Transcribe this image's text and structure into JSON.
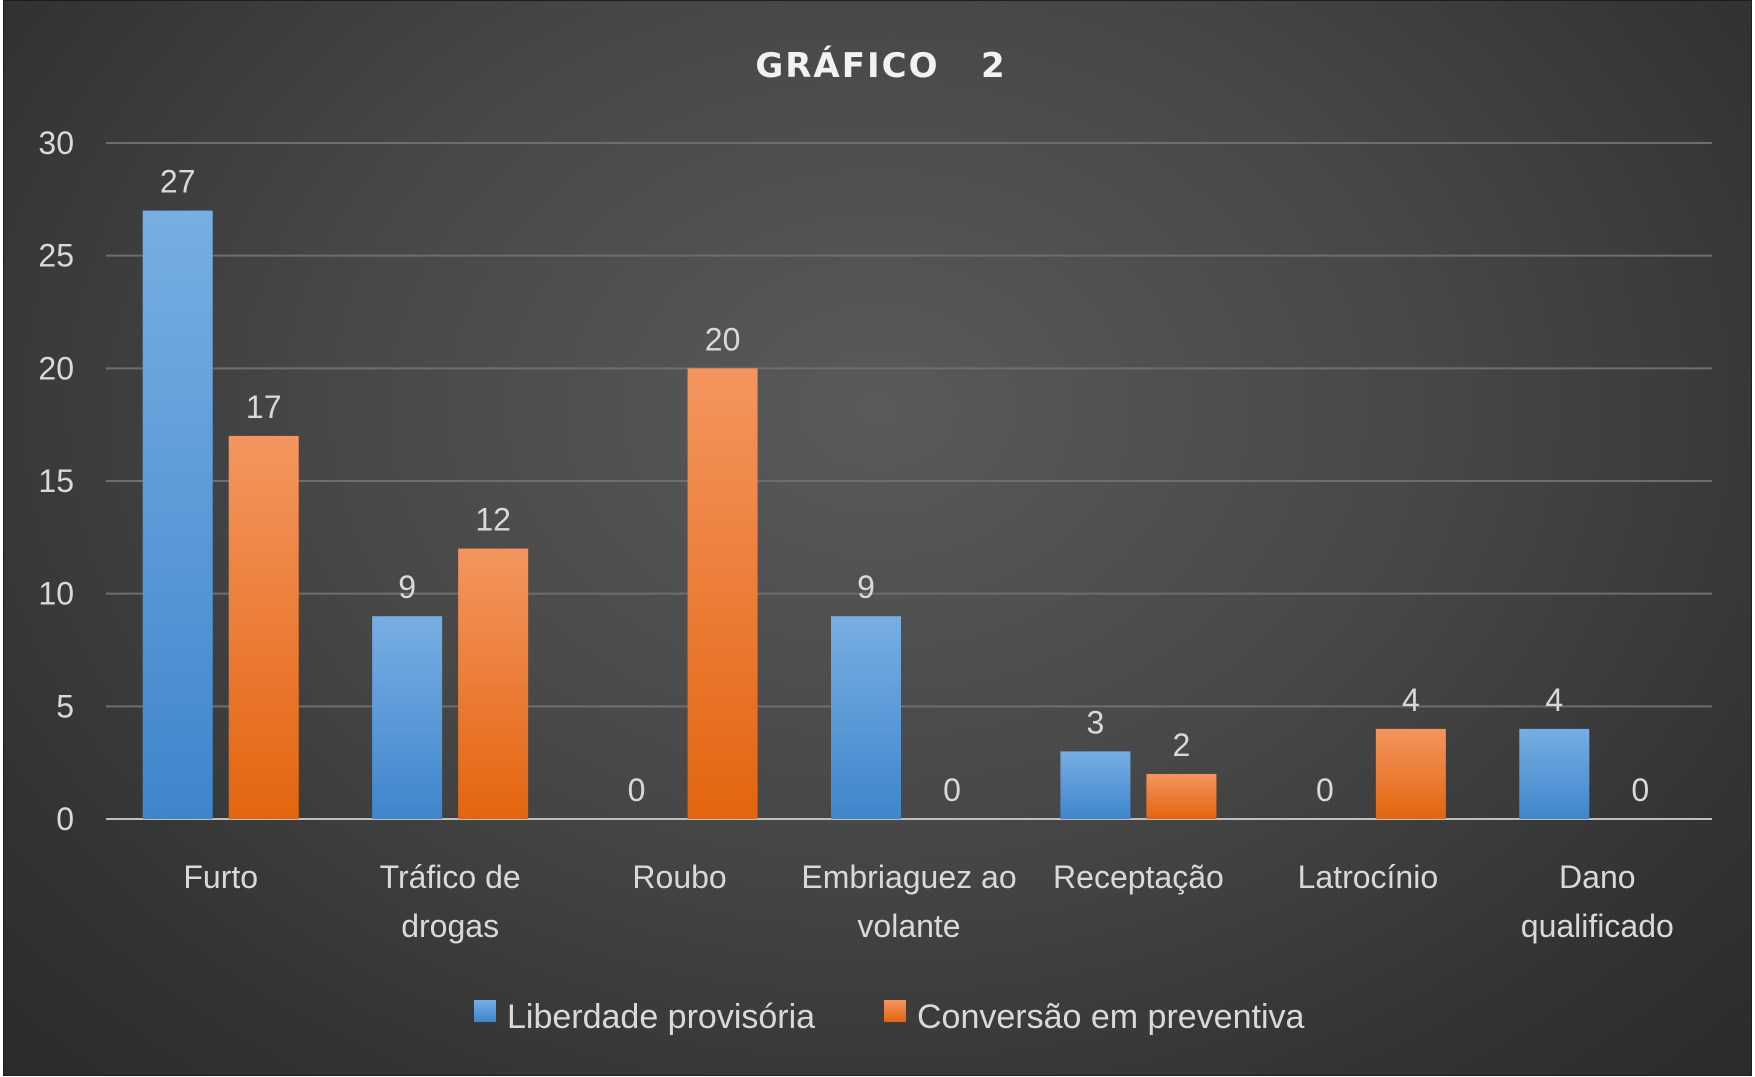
{
  "chart_data": {
    "type": "bar",
    "title": "GRÁFICO   2",
    "categories": [
      [
        "Furto"
      ],
      [
        "Tráfico de",
        "drogas"
      ],
      [
        "Roubo"
      ],
      [
        "Embriaguez ao",
        "volante"
      ],
      [
        "Receptação"
      ],
      [
        "Latrocínio"
      ],
      [
        "Dano",
        "qualificado"
      ]
    ],
    "series": [
      {
        "name": "Liberdade provisória",
        "values": [
          27,
          9,
          0,
          9,
          3,
          0,
          4
        ],
        "color": "#5b9bd5"
      },
      {
        "name": "Conversão em preventiva",
        "values": [
          17,
          12,
          20,
          0,
          2,
          4,
          0
        ],
        "color": "#ed7d31"
      }
    ],
    "ylim": [
      0,
      30
    ],
    "yticks": [
      "0",
      "5",
      "10",
      "15",
      "20",
      "25",
      "30"
    ],
    "grid": true,
    "legend": "bottom",
    "data_labels": true
  }
}
